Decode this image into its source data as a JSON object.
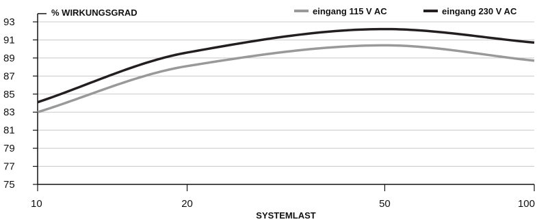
{
  "chart_data": {
    "type": "line",
    "ylabel": "% WIRKUNGSGRAD",
    "xlabel": "SYSTEMLAST",
    "ylim": [
      75,
      93
    ],
    "y_ticks": [
      "75",
      "77",
      "79",
      "81",
      "83",
      "85",
      "87",
      "89",
      "91",
      "93"
    ],
    "x_ticks": [
      "10",
      "20",
      "50",
      "100"
    ],
    "x_scale": "log",
    "grid": true,
    "legend_position": "top-right",
    "x": [
      10,
      20,
      50,
      100
    ],
    "series": [
      {
        "name": "eingang 115 V AC",
        "color": "#999999",
        "values": [
          83.0,
          88.1,
          90.4,
          88.7
        ]
      },
      {
        "name": "eingang 230 V AC",
        "color": "#231f20",
        "values": [
          84.1,
          89.6,
          92.2,
          90.7
        ]
      }
    ]
  }
}
